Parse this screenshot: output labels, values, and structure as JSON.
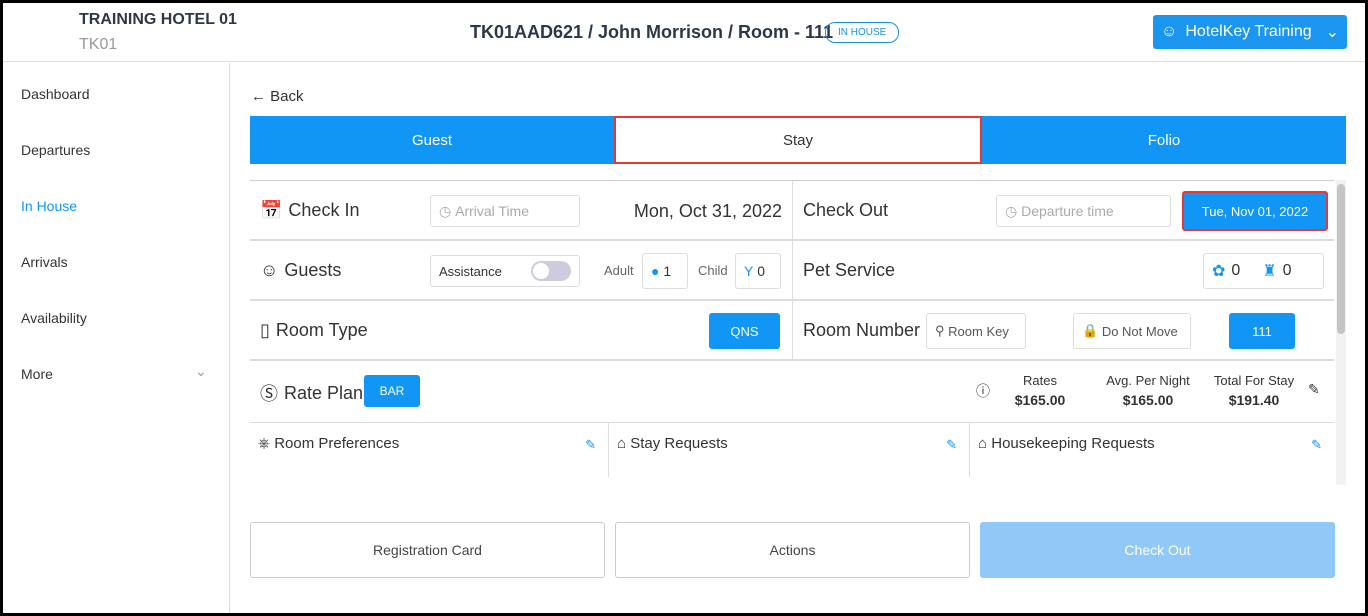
{
  "header": {
    "hotel_name": "TRAINING HOTEL 01",
    "hotel_code": "TK01",
    "title": "TK01AAD621 / John Morrison / Room - 111",
    "status": "IN HOUSE",
    "user": "HotelKey Training"
  },
  "sidebar": {
    "items": [
      {
        "label": "Dashboard"
      },
      {
        "label": "Departures"
      },
      {
        "label": "In House",
        "active": true
      },
      {
        "label": "Arrivals"
      },
      {
        "label": "Availability"
      },
      {
        "label": "More"
      }
    ]
  },
  "back": "Back",
  "tabs": [
    {
      "label": "Guest"
    },
    {
      "label": "Stay",
      "active": true
    },
    {
      "label": "Folio"
    }
  ],
  "stay": {
    "check_in": {
      "label": "Check In",
      "time_placeholder": "Arrival Time",
      "date": "Mon, Oct 31, 2022"
    },
    "check_out": {
      "label": "Check Out",
      "time_placeholder": "Departure time",
      "date": "Tue, Nov 01, 2022"
    },
    "guests": {
      "label": "Guests",
      "assistance": "Assistance",
      "assistance_on": false,
      "adult_label": "Adult",
      "adult": "1",
      "child_label": "Child",
      "child": "0"
    },
    "pet": {
      "label": "Pet Service",
      "dogs": "0",
      "service_animals": "0"
    },
    "room_type": {
      "label": "Room Type",
      "value": "QNS"
    },
    "room_number": {
      "label": "Room Number",
      "room_key": "Room Key",
      "do_not_move": "Do Not Move",
      "value": "111"
    },
    "rate_plan": {
      "label": "Rate Plan",
      "value": "BAR",
      "rates_label": "Rates",
      "rates": "$165.00",
      "avg_label": "Avg. Per Night",
      "avg": "$165.00",
      "total_label": "Total For Stay",
      "total": "$191.40"
    },
    "prefs": [
      "Room Preferences",
      "Stay Requests",
      "Housekeeping Requests"
    ]
  },
  "actions": {
    "registration": "Registration Card",
    "actions": "Actions",
    "checkout": "Check Out"
  },
  "colors": {
    "accent": "#1196f5",
    "highlight": "#e53935"
  }
}
